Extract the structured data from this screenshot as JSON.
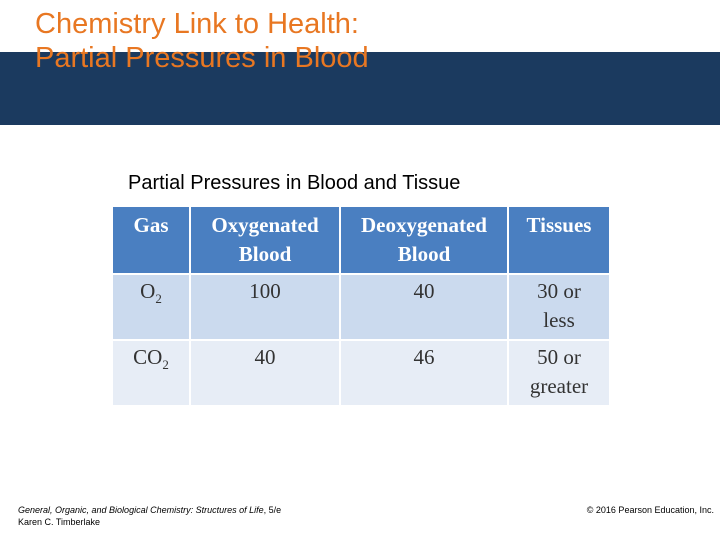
{
  "slide": {
    "title_line1": "Chemistry Link to Health:",
    "title_line2": "Partial Pressures in Blood"
  },
  "colors": {
    "title": "#e87722",
    "header_band": "#1b3a5f",
    "table_header": "#4a7fc1",
    "row_odd": "#cbdaee",
    "row_even": "#e7edf6"
  },
  "table": {
    "caption": "Partial Pressures in Blood and Tissue",
    "headers": [
      {
        "line1": "Gas",
        "line2": ""
      },
      {
        "line1": "Oxygenated",
        "line2": "Blood"
      },
      {
        "line1": "Deoxygenated",
        "line2": "Blood"
      },
      {
        "line1": "Tissues",
        "line2": ""
      }
    ],
    "rows": [
      {
        "gas": {
          "base": "O",
          "sub": "2"
        },
        "oxygenated": "100",
        "deoxygenated": "40",
        "tissues_line1": "30 or",
        "tissues_line2": "less"
      },
      {
        "gas": {
          "base": "CO",
          "sub": "2"
        },
        "oxygenated": "40",
        "deoxygenated": "46",
        "tissues_line1": "50 or",
        "tissues_line2": "greater"
      }
    ]
  },
  "footer": {
    "book_title": "General, Organic, and Biological Chemistry: Structures of Life",
    "edition": ", 5/e",
    "author": "Karen C. Timberlake",
    "copyright": "© 2016 Pearson Education, Inc."
  }
}
